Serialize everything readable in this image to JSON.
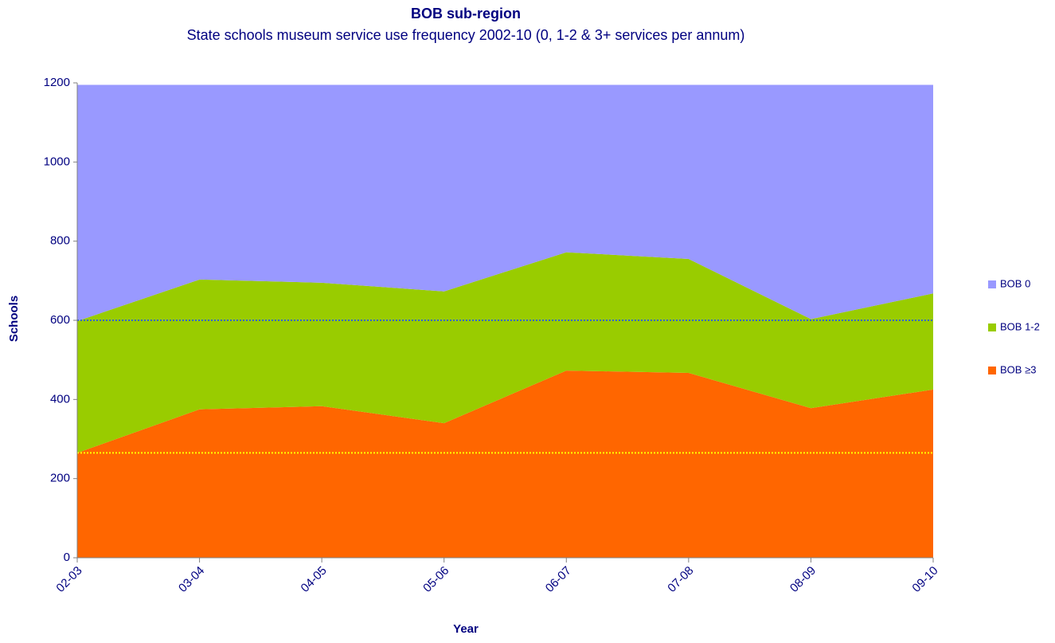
{
  "chart_data": {
    "type": "stacked_area",
    "title": "BOB sub-region",
    "subtitle": "State schools museum service use frequency 2002-10 (0, 1-2 & 3+  services per annum)",
    "x_label": "Year",
    "y_label": "Schools",
    "categories": [
      "02-03",
      "03-04",
      "04-05",
      "05-06",
      "06-07",
      "07-08",
      "08-09",
      "09-10"
    ],
    "series": [
      {
        "name": "BOB ≥3",
        "color": "#ff6600",
        "values": [
          265,
          375,
          383,
          340,
          473,
          467,
          378,
          425
        ]
      },
      {
        "name": "BOB 1-2",
        "color": "#99cc00",
        "values": [
          333,
          328,
          312,
          333,
          299,
          288,
          225,
          243
        ]
      },
      {
        "name": "BOB 0",
        "color": "#9999ff",
        "values": [
          597,
          492,
          500,
          522,
          423,
          440,
          592,
          527
        ]
      }
    ],
    "legend_order": [
      2,
      1,
      0
    ],
    "reference_lines": [
      {
        "value": 600,
        "color": "#3366cc"
      },
      {
        "value": 265,
        "color": "#ffff00"
      }
    ],
    "ylim": [
      0,
      1200
    ],
    "yticks": [
      0,
      200,
      400,
      600,
      800,
      1000,
      1200
    ],
    "legend": "right"
  }
}
